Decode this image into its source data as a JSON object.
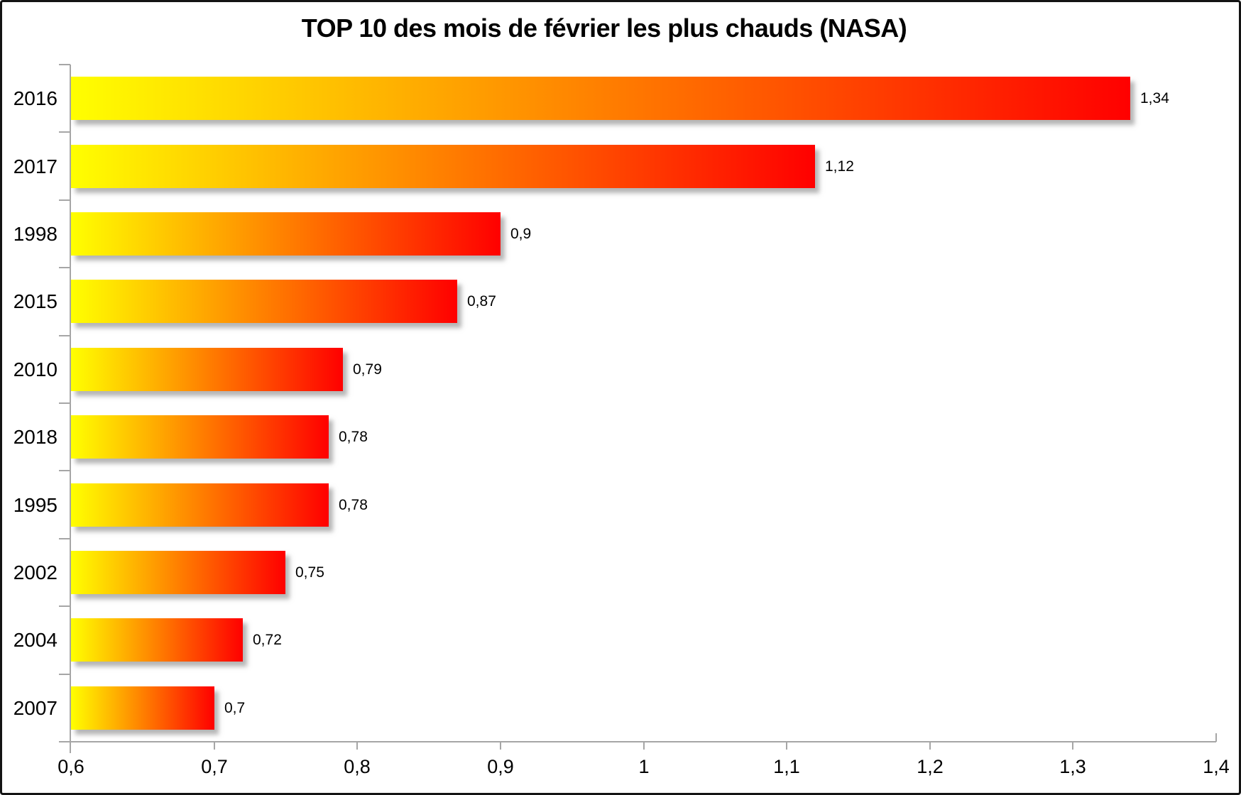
{
  "chart_data": {
    "type": "bar",
    "orientation": "horizontal",
    "title": "TOP 10 des mois de février les plus chauds (NASA)",
    "categories": [
      "2016",
      "2017",
      "1998",
      "2015",
      "2010",
      "2018",
      "1995",
      "2002",
      "2004",
      "2007"
    ],
    "values": [
      1.34,
      1.12,
      0.9,
      0.87,
      0.79,
      0.78,
      0.78,
      0.75,
      0.72,
      0.7
    ],
    "value_labels": [
      "1,34",
      "1,12",
      "0,9",
      "0,87",
      "0,79",
      "0,78",
      "0,78",
      "0,75",
      "0,72",
      "0,7"
    ],
    "xlabel": "",
    "ylabel": "",
    "xlim": [
      0.6,
      1.4
    ],
    "x_ticks": [
      {
        "value": 0.6,
        "label": "0,6"
      },
      {
        "value": 0.7,
        "label": "0,7"
      },
      {
        "value": 0.8,
        "label": "0,8"
      },
      {
        "value": 0.9,
        "label": "0,9"
      },
      {
        "value": 1.0,
        "label": "1"
      },
      {
        "value": 1.1,
        "label": "1,1"
      },
      {
        "value": 1.2,
        "label": "1,2"
      },
      {
        "value": 1.3,
        "label": "1,3"
      },
      {
        "value": 1.4,
        "label": "1,4"
      }
    ],
    "grid": false,
    "legend": false,
    "colors": {
      "bar_gradient_start": "#FFFF00",
      "bar_gradient_end": "#FF0000",
      "axis": "#A6A6A6",
      "text": "#000000"
    }
  }
}
